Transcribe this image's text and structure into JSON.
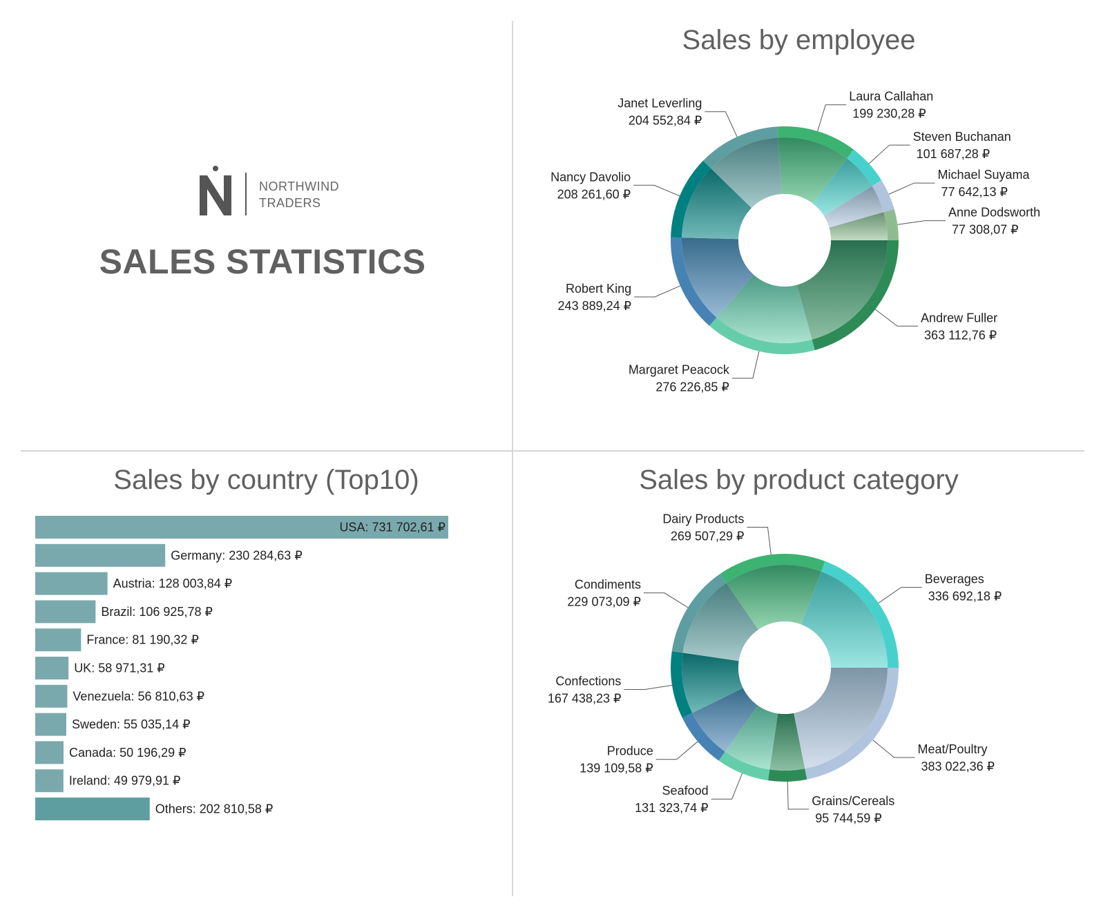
{
  "brand": {
    "name_line1": "NORTHWIND",
    "name_line2": "TRADERS",
    "logo_icon": "northwind-n-logo-icon"
  },
  "page_title": "SALES STATISTICS",
  "panels": {
    "employee_title": "Sales by employee",
    "country_title": "Sales by country (Top10)",
    "category_title": "Sales by product category"
  },
  "chart_data": [
    {
      "type": "pie",
      "variant": "donut",
      "title": "Sales by employee",
      "slices": [
        {
          "name": "Andrew Fuller",
          "value": 363112.76,
          "label_value": "363 112,76 ₽",
          "color": "#2e8b57"
        },
        {
          "name": "Margaret Peacock",
          "value": 276226.85,
          "label_value": "276 226,85 ₽",
          "color": "#66cdaa"
        },
        {
          "name": "Robert King",
          "value": 243889.24,
          "label_value": "243 889,24 ₽",
          "color": "#4682b4"
        },
        {
          "name": "Nancy Davolio",
          "value": 208261.6,
          "label_value": "208 261,60 ₽",
          "color": "#008080"
        },
        {
          "name": "Janet Leverling",
          "value": 204552.84,
          "label_value": "204 552,84 ₽",
          "color": "#5f9ea0"
        },
        {
          "name": "Laura Callahan",
          "value": 199230.28,
          "label_value": "199 230,28 ₽",
          "color": "#3cb371"
        },
        {
          "name": "Steven Buchanan",
          "value": 101687.28,
          "label_value": "101 687,28 ₽",
          "color": "#48d1cc"
        },
        {
          "name": "Michael Suyama",
          "value": 77642.13,
          "label_value": "77 642,13 ₽",
          "color": "#b0c4de"
        },
        {
          "name": "Anne Dodsworth",
          "value": 77308.07,
          "label_value": "77 308,07 ₽",
          "color": "#8fbc8f"
        }
      ]
    },
    {
      "type": "bar",
      "orientation": "horizontal",
      "title": "Sales by country (Top10)",
      "bar_color": "#7aa9ad",
      "others_color": "#5f9ea0",
      "categories": [
        "USA",
        "Germany",
        "Austria",
        "Brazil",
        "France",
        "UK",
        "Venezuela",
        "Sweden",
        "Canada",
        "Ireland",
        "Others"
      ],
      "values": [
        731702.61,
        230284.63,
        128003.84,
        106925.78,
        81190.32,
        58971.31,
        56810.63,
        55035.14,
        50196.29,
        49979.91,
        202810.58
      ],
      "labels": [
        "USA: 731 702,61 ₽",
        "Germany: 230 284,63 ₽",
        "Austria: 128 003,84 ₽",
        "Brazil: 106 925,78 ₽",
        "France: 81 190,32 ₽",
        "UK: 58 971,31 ₽",
        "Venezuela: 56 810,63 ₽",
        "Sweden: 55 035,14 ₽",
        "Canada: 50 196,29 ₽",
        "Ireland: 49 979,91 ₽",
        "Others: 202 810,58 ₽"
      ]
    },
    {
      "type": "pie",
      "variant": "donut",
      "title": "Sales by product category",
      "slices": [
        {
          "name": "Meat/Poultry",
          "value": 383022.36,
          "label_value": "383 022,36 ₽",
          "color": "#b0c4de"
        },
        {
          "name": "Grains/Cereals",
          "value": 95744.59,
          "label_value": "95 744,59 ₽",
          "color": "#2e8b57"
        },
        {
          "name": "Seafood",
          "value": 131323.74,
          "label_value": "131 323,74 ₽",
          "color": "#66cdaa"
        },
        {
          "name": "Produce",
          "value": 139109.58,
          "label_value": "139 109,58 ₽",
          "color": "#4682b4"
        },
        {
          "name": "Confections",
          "value": 167438.23,
          "label_value": "167 438,23 ₽",
          "color": "#008080"
        },
        {
          "name": "Condiments",
          "value": 229073.09,
          "label_value": "229 073,09 ₽",
          "color": "#5f9ea0"
        },
        {
          "name": "Dairy Products",
          "value": 269507.29,
          "label_value": "269 507,29 ₽",
          "color": "#3cb371"
        },
        {
          "name": "Beverages",
          "value": 336692.18,
          "label_value": "336 692,18 ₽",
          "color": "#48d1cc"
        }
      ]
    }
  ]
}
